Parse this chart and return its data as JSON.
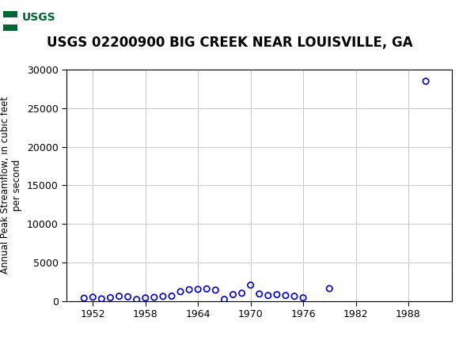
{
  "title": "USGS 02200900 BIG CREEK NEAR LOUISVILLE, GA",
  "ylabel": "Annual Peak Streamflow, in cubic feet\nper second",
  "stream_years": [
    1951,
    1952,
    1953,
    1954,
    1955,
    1956,
    1957,
    1958,
    1959,
    1960,
    1961,
    1962,
    1963,
    1964,
    1965,
    1966,
    1967,
    1968,
    1969,
    1970,
    1971,
    1972,
    1973,
    1974,
    1975,
    1976,
    1979,
    1990
  ],
  "stream_flows": [
    350,
    480,
    270,
    420,
    600,
    540,
    180,
    380,
    460,
    590,
    620,
    1200,
    1460,
    1500,
    1560,
    1400,
    200,
    820,
    1000,
    2050,
    900,
    700,
    820,
    700,
    600,
    400,
    1600,
    28500
  ],
  "xlim": [
    1949,
    1993
  ],
  "ylim": [
    0,
    30000
  ],
  "yticks": [
    0,
    5000,
    10000,
    15000,
    20000,
    25000,
    30000
  ],
  "xticks": [
    1952,
    1958,
    1964,
    1970,
    1976,
    1982,
    1988
  ],
  "marker_color": "#0000cc",
  "marker_size": 28,
  "marker_lw": 1.2,
  "grid_color": "#c8c8c8",
  "bg_color": "#ffffff",
  "header_color": "#006633",
  "title_fontsize": 12,
  "ylabel_fontsize": 8.5,
  "tick_fontsize": 9,
  "logo_text": "USGS",
  "logo_bg": "#ffffff",
  "logo_fg": "#006633"
}
